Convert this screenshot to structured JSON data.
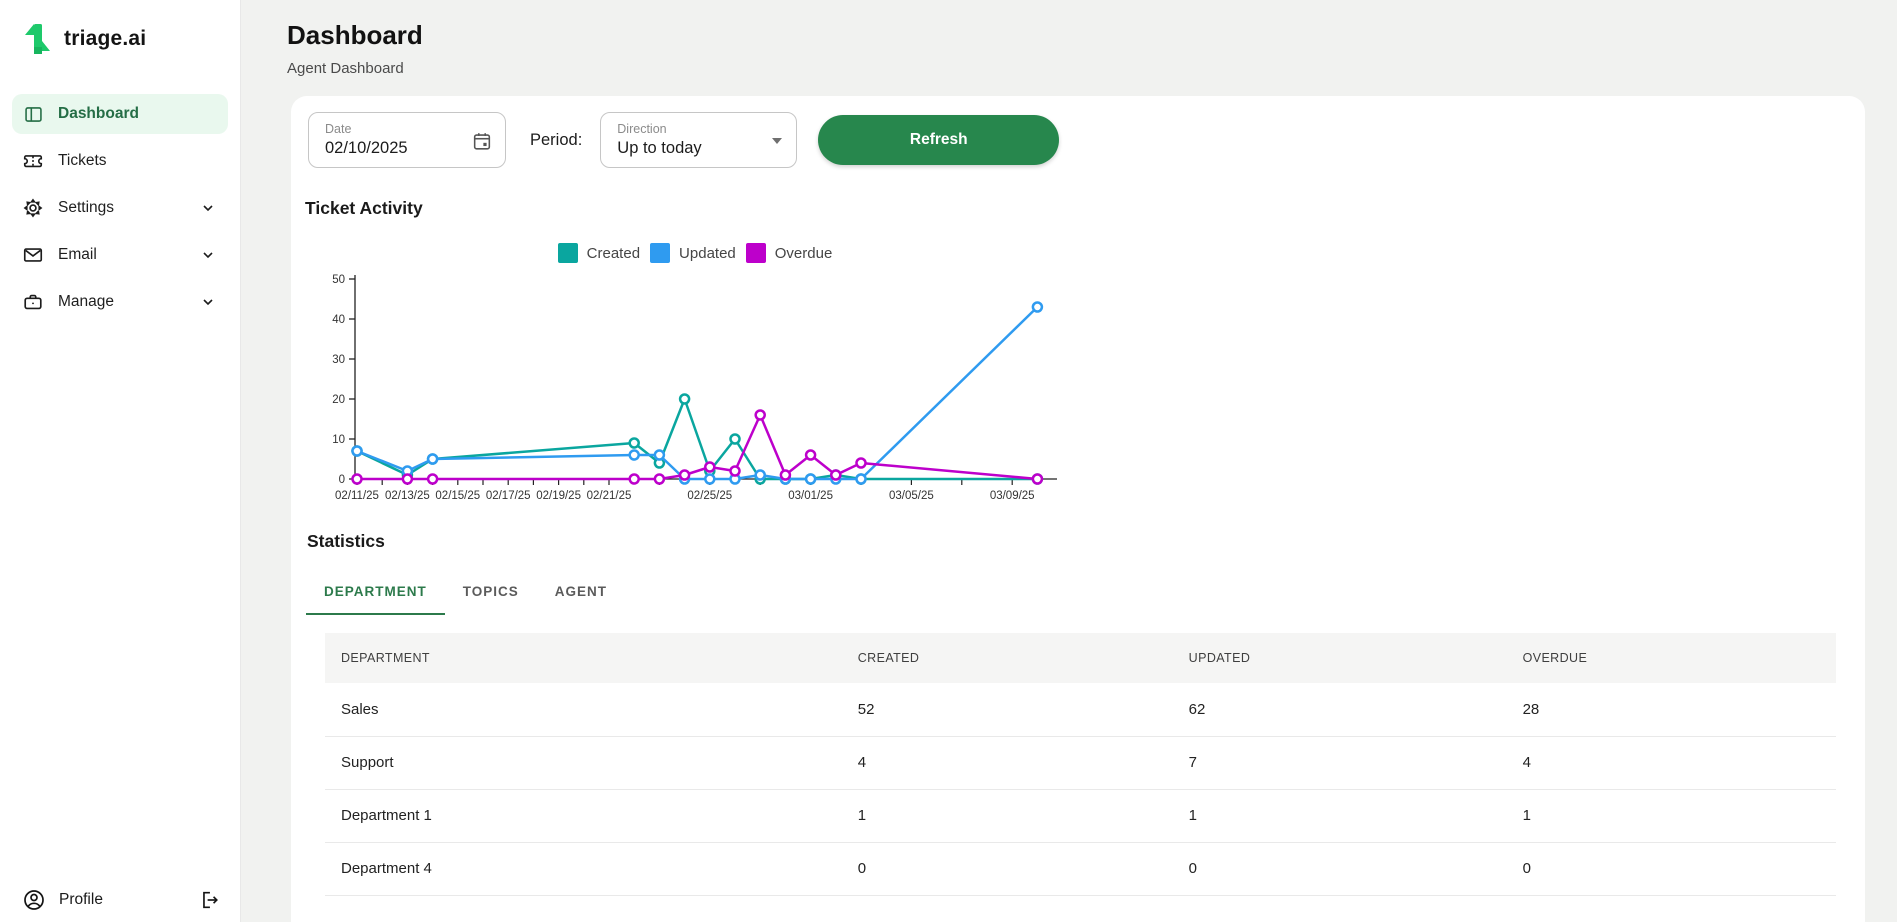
{
  "brand": {
    "name": "triage.ai"
  },
  "sidebar": {
    "items": [
      {
        "label": "Dashboard",
        "active": true,
        "expandable": false
      },
      {
        "label": "Tickets",
        "active": false,
        "expandable": false
      },
      {
        "label": "Settings",
        "active": false,
        "expandable": true
      },
      {
        "label": "Email",
        "active": false,
        "expandable": true
      },
      {
        "label": "Manage",
        "active": false,
        "expandable": true
      }
    ],
    "profile_label": "Profile"
  },
  "header": {
    "title": "Dashboard",
    "subtitle": "Agent Dashboard"
  },
  "filters": {
    "date_label": "Date",
    "date_value": "02/10/2025",
    "period_label": "Period:",
    "direction_label": "Direction",
    "direction_value": "Up to today",
    "refresh_label": "Refresh"
  },
  "sections": {
    "chart_title": "Ticket Activity",
    "stats_title": "Statistics"
  },
  "tabs": [
    {
      "label": "DEPARTMENT",
      "active": true
    },
    {
      "label": "TOPICS",
      "active": false
    },
    {
      "label": "AGENT",
      "active": false
    }
  ],
  "table": {
    "columns": [
      "DEPARTMENT",
      "CREATED",
      "UPDATED",
      "OVERDUE"
    ],
    "rows": [
      [
        "Sales",
        "52",
        "62",
        "28"
      ],
      [
        "Support",
        "4",
        "7",
        "4"
      ],
      [
        "Department 1",
        "1",
        "1",
        "1"
      ],
      [
        "Department 4",
        "0",
        "0",
        "0"
      ]
    ]
  },
  "colors": {
    "brand_green": "#1ec96b",
    "button_green": "#27874d",
    "active_nav_bg": "#e9f8ee",
    "active_nav_text": "#256e46",
    "tab_active_green": "#2c7a4b",
    "created": "#0aa69f",
    "updated": "#2f9bf0",
    "overdue": "#bd00cb"
  },
  "chart_data": {
    "type": "line",
    "title": "Ticket Activity",
    "x": [
      "02/11/25",
      "02/13/25",
      "02/14/25",
      "02/22/25",
      "02/23/25",
      "02/24/25",
      "02/25/25",
      "02/26/25",
      "02/27/25",
      "02/28/25",
      "03/01/25",
      "03/02/25",
      "03/03/25",
      "03/10/25"
    ],
    "series": [
      {
        "name": "Created",
        "color": "#0aa69f",
        "values": [
          7,
          1,
          5,
          9,
          4,
          20,
          2,
          10,
          0,
          0,
          0,
          1,
          0,
          0
        ]
      },
      {
        "name": "Updated",
        "color": "#2f9bf0",
        "values": [
          7,
          2,
          5,
          6,
          6,
          0,
          0,
          0,
          1,
          0,
          0,
          0,
          0,
          43
        ]
      },
      {
        "name": "Overdue",
        "color": "#bd00cb",
        "values": [
          0,
          0,
          0,
          0,
          0,
          1,
          3,
          2,
          16,
          1,
          6,
          1,
          4,
          0
        ]
      }
    ],
    "x_tick_labels": [
      "02/11/25",
      "02/13/25",
      "02/15/25",
      "02/17/25",
      "02/19/25",
      "02/21/25",
      "02/25/25",
      "03/01/25",
      "03/05/25",
      "03/09/25"
    ],
    "y_ticks": [
      0,
      10,
      20,
      30,
      40,
      50
    ],
    "ylim": [
      0,
      50
    ],
    "grid": false,
    "legend_position": "top"
  }
}
